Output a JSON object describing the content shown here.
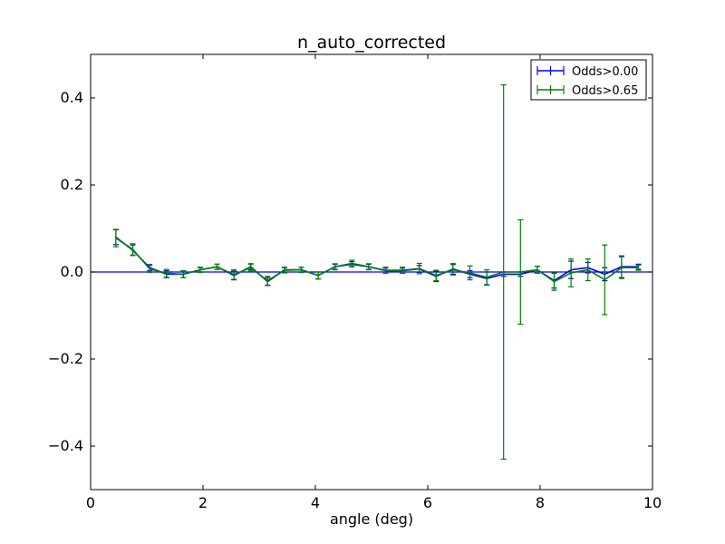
{
  "chart_data": {
    "type": "line",
    "title": "n_auto_corrected",
    "xlabel": "angle (deg)",
    "ylabel": "",
    "xlim": [
      0,
      10
    ],
    "ylim": [
      -0.5,
      0.5
    ],
    "xticks": [
      0,
      2,
      4,
      6,
      8,
      10
    ],
    "yticks": [
      0.4,
      0.2,
      0.0,
      -0.2,
      -0.4
    ],
    "xtick_labels": [
      "0",
      "2",
      "4",
      "6",
      "8",
      "10"
    ],
    "ytick_labels": [
      "0.4",
      "0.2",
      "0.0",
      "−0.2",
      "−0.4"
    ],
    "grid": false,
    "legend_position": "top-right",
    "reference_line_y": 0.0,
    "reference_line_color": "#0000ff",
    "x": [
      0.45,
      0.75,
      1.05,
      1.35,
      1.65,
      1.95,
      2.25,
      2.55,
      2.85,
      3.15,
      3.45,
      3.75,
      4.05,
      4.35,
      4.65,
      4.95,
      5.25,
      5.55,
      5.85,
      6.15,
      6.45,
      6.75,
      7.05,
      7.35,
      7.65,
      7.95,
      8.25,
      8.55,
      8.85,
      9.15,
      9.45,
      9.75
    ],
    "series": [
      {
        "name": "Odds>0.00",
        "color": "#0000ff",
        "values": [
          0.08,
          0.05,
          0.01,
          -0.005,
          -0.005,
          0.005,
          0.012,
          -0.008,
          0.012,
          -0.022,
          0.005,
          0.005,
          -0.008,
          0.012,
          0.018,
          0.012,
          0.003,
          0.003,
          0.007,
          -0.01,
          0.007,
          -0.005,
          -0.015,
          -0.005,
          -0.005,
          0.005,
          -0.02,
          0.005,
          0.01,
          -0.005,
          0.012,
          0.012
        ],
        "errors": [
          0.017,
          0.012,
          0.007,
          0.008,
          0.008,
          0.005,
          0.006,
          0.01,
          0.007,
          0.009,
          0.006,
          0.006,
          0.008,
          0.006,
          0.006,
          0.006,
          0.006,
          0.006,
          0.008,
          0.012,
          0.012,
          0.008,
          0.015,
          0.005,
          0.005,
          0.008,
          0.017,
          0.02,
          0.012,
          0.015,
          0.025,
          0.006
        ]
      },
      {
        "name": "Odds>0.65",
        "color": "#008000",
        "values": [
          0.078,
          0.052,
          0.007,
          -0.003,
          -0.005,
          0.005,
          0.012,
          -0.006,
          0.01,
          -0.02,
          0.004,
          0.005,
          -0.008,
          0.012,
          0.02,
          0.012,
          0.004,
          0.004,
          0.008,
          -0.008,
          0.005,
          -0.002,
          -0.012,
          0.0,
          0.0,
          0.005,
          -0.022,
          -0.002,
          0.005,
          -0.018,
          0.01,
          0.01
        ],
        "errors": [
          0.02,
          0.013,
          0.008,
          0.009,
          0.008,
          0.006,
          0.006,
          0.011,
          0.008,
          0.01,
          0.006,
          0.006,
          0.008,
          0.007,
          0.007,
          0.007,
          0.007,
          0.007,
          0.012,
          0.012,
          0.012,
          0.016,
          0.017,
          0.43,
          0.12,
          0.008,
          0.02,
          0.032,
          0.025,
          0.08,
          0.025,
          0.006
        ]
      }
    ]
  }
}
